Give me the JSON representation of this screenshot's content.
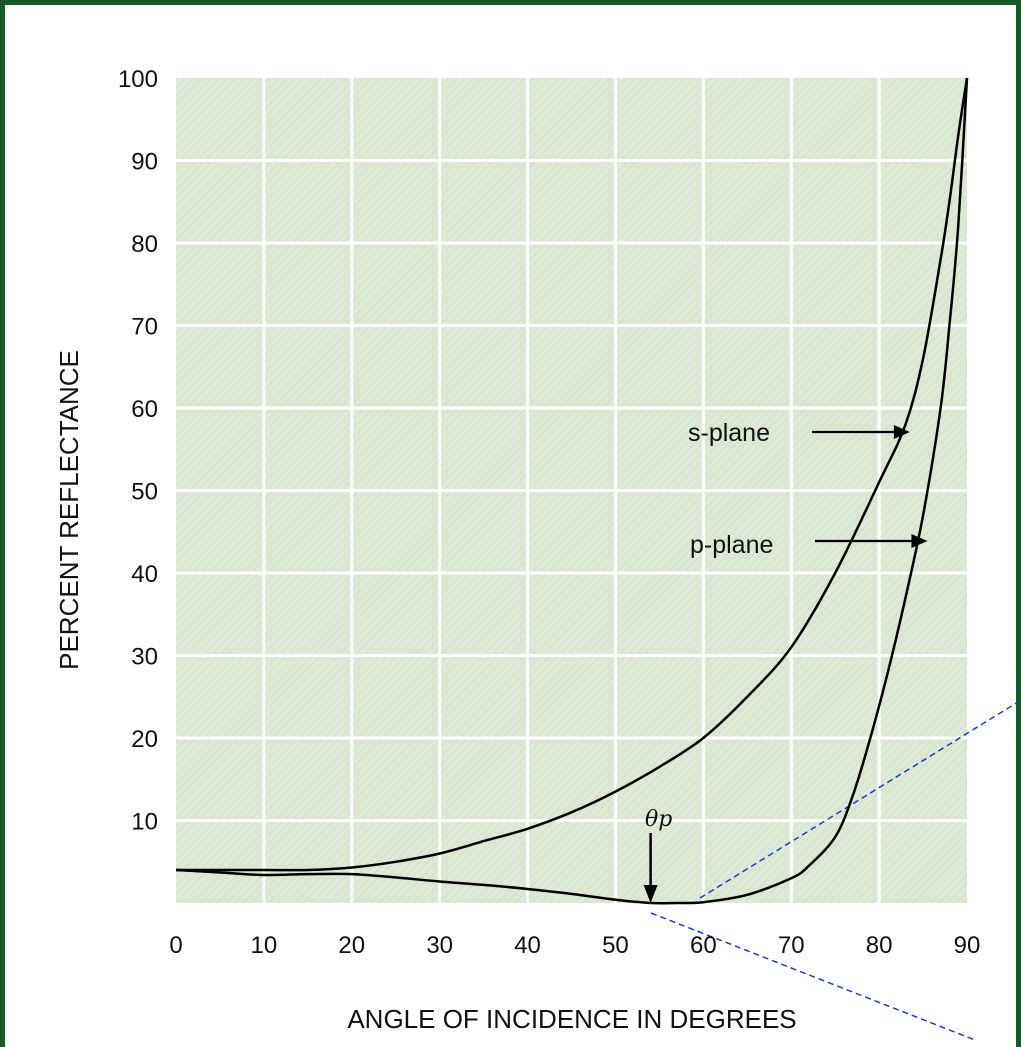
{
  "colors": {
    "frame": "#1a5a2a",
    "plot_background": "#dde9d6",
    "grid": "#ffffff",
    "curve": "#000000",
    "dashed_guides": "#1a3fc4"
  },
  "chart_data": {
    "type": "line",
    "title": "",
    "xlabel": "ANGLE OF INCIDENCE IN DEGREES",
    "ylabel": "PERCENT REFLECTANCE",
    "xlim": [
      0,
      90
    ],
    "ylim": [
      0,
      100
    ],
    "xticks": [
      "0",
      "10",
      "20",
      "30",
      "40",
      "50",
      "60",
      "70",
      "80",
      "90"
    ],
    "yticks": [
      "10",
      "20",
      "30",
      "40",
      "50",
      "60",
      "70",
      "80",
      "90",
      "100"
    ],
    "grid": true,
    "series": [
      {
        "name": "s-plane",
        "x": [
          0,
          5,
          10,
          15,
          20,
          25,
          30,
          35,
          40,
          45,
          50,
          55,
          60,
          65,
          70,
          75,
          80,
          83,
          85,
          87,
          88,
          89,
          90
        ],
        "y": [
          4,
          4,
          4,
          4,
          4.3,
          5,
          6,
          7.5,
          9,
          11,
          13.5,
          16.5,
          20,
          25,
          31,
          40,
          51,
          58,
          66,
          78,
          85,
          93,
          100
        ]
      },
      {
        "name": "p-plane",
        "x": [
          0,
          5,
          10,
          15,
          20,
          25,
          30,
          35,
          40,
          45,
          50,
          54,
          57,
          60,
          65,
          70,
          72,
          75,
          77,
          79,
          81,
          83,
          85,
          87,
          88,
          89,
          90
        ],
        "y": [
          4,
          3.7,
          3.4,
          3.5,
          3.5,
          3.1,
          2.6,
          2.2,
          1.7,
          1.1,
          0.4,
          0,
          0,
          0.1,
          1,
          3,
          4.5,
          8,
          13,
          20,
          28,
          37,
          47,
          60,
          70,
          82,
          100
        ]
      }
    ],
    "annotations": [
      {
        "label": "s-plane",
        "series": "s-plane",
        "target_x": 83.5,
        "target_y": 58
      },
      {
        "label": "p-plane",
        "series": "p-plane",
        "target_x": 85.5,
        "target_y": 45
      },
      {
        "label": "θp",
        "target_x": 54,
        "target_y": 0
      }
    ]
  }
}
